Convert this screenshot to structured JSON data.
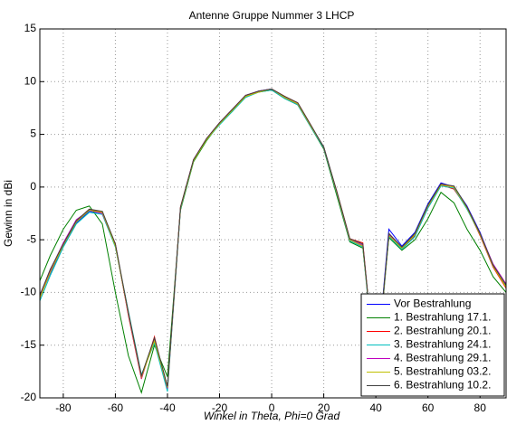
{
  "chart_data": {
    "type": "line",
    "title": "Antenne  Gruppe Nummer 3 LHCP",
    "x_label": "Winkel in Theta, Phi=0 Grad",
    "y_label": "Gewinn in dBi",
    "x": [
      -90,
      -85,
      -80,
      -75,
      -70,
      -65,
      -60,
      -55,
      -50,
      -45,
      -40,
      -35,
      -30,
      -25,
      -20,
      -15,
      -10,
      -5,
      0,
      5,
      10,
      15,
      20,
      25,
      30,
      35,
      40,
      45,
      50,
      55,
      60,
      65,
      70,
      75,
      80,
      85,
      90
    ],
    "xlim": [
      -89,
      90
    ],
    "ylim": [
      -20,
      15
    ],
    "xticks": [
      -80,
      -60,
      -40,
      -20,
      0,
      20,
      40,
      60,
      80
    ],
    "yticks": [
      -20,
      -15,
      -10,
      -5,
      0,
      5,
      10,
      15
    ],
    "grid": true,
    "legend": "lower right",
    "series": [
      {
        "name": "Vor Bestrahlung",
        "color": "#0000ff",
        "values": [
          -11,
          -8.2,
          -5.6,
          -3.4,
          -2.3,
          -2.5,
          -5.6,
          -12,
          -18,
          -14.5,
          -19,
          -2,
          2.5,
          4.5,
          6,
          7.3,
          8.6,
          9.1,
          9.3,
          8.5,
          7.9,
          5.8,
          3.8,
          -0.5,
          -5,
          -5.6,
          -18,
          -4,
          -5.6,
          -4.3,
          -1.6,
          0.4,
          0,
          -1.8,
          -4.3,
          -7.4,
          -9.3
        ]
      },
      {
        "name": "1. Bestrahlung 17.1.",
        "color": "#008000",
        "values": [
          -9.5,
          -6.5,
          -4,
          -2.2,
          -1.8,
          -3.5,
          -10,
          -16,
          -19.5,
          -15,
          -18,
          -2.2,
          2.4,
          4.4,
          6,
          7.2,
          8.6,
          9,
          9.2,
          8.4,
          7.8,
          5.7,
          3.6,
          -0.8,
          -5.2,
          -5.8,
          -17.5,
          -4.8,
          -6,
          -5,
          -3,
          -0.5,
          -1.5,
          -4,
          -6,
          -8.5,
          -10
        ]
      },
      {
        "name": "2. Bestrahlung 20.1.",
        "color": "#ff0000",
        "values": [
          -11.2,
          -8,
          -5.4,
          -3.2,
          -2.1,
          -2.4,
          -5.4,
          -12.2,
          -18.2,
          -14.2,
          -19.2,
          -1.9,
          2.6,
          4.6,
          6.1,
          7.4,
          8.7,
          9,
          9.3,
          8.6,
          8,
          5.9,
          3.7,
          -0.4,
          -4.9,
          -5.3,
          -18.2,
          -4.6,
          -5.8,
          -4.6,
          -1.9,
          0.2,
          -0.2,
          -2,
          -4.6,
          -7.6,
          -9.6
        ]
      },
      {
        "name": "3. Bestrahlung 24.1.",
        "color": "#00bfbf",
        "values": [
          -11.4,
          -8.4,
          -5.7,
          -3.5,
          -2.4,
          -2.6,
          -5.7,
          -11.8,
          -17.8,
          -14.8,
          -19.4,
          -2.1,
          2.5,
          4.5,
          5.9,
          7.2,
          8.5,
          9,
          9.2,
          8.4,
          7.8,
          5.7,
          3.7,
          -0.6,
          -5.1,
          -5.7,
          -18.4,
          -4.7,
          -5.9,
          -4.7,
          -2,
          0.1,
          -0.1,
          -2.1,
          -4.5,
          -7.5,
          -9.4
        ]
      },
      {
        "name": "4. Bestrahlung 29.1.",
        "color": "#bf00bf",
        "values": [
          -10.8,
          -7.9,
          -5.3,
          -3.1,
          -2.2,
          -2.5,
          -5.5,
          -12.1,
          -18.1,
          -14.4,
          -19.1,
          -2,
          2.6,
          4.6,
          6.1,
          7.4,
          8.7,
          9.1,
          9.3,
          8.5,
          7.9,
          5.8,
          3.8,
          -0.5,
          -5,
          -5.5,
          -18.1,
          -4.5,
          -5.7,
          -4.5,
          -1.8,
          0.3,
          0,
          -1.9,
          -4.4,
          -7.3,
          -9.2
        ]
      },
      {
        "name": "5. Bestrahlung 03.2.",
        "color": "#bfbf00",
        "values": [
          -11.1,
          -8.1,
          -5.5,
          -3.3,
          -2.2,
          -2.4,
          -5.6,
          -12,
          -18,
          -14.6,
          -19,
          -2,
          2.5,
          4.5,
          6,
          7.3,
          8.6,
          9,
          9.3,
          8.5,
          7.9,
          5.8,
          3.8,
          -0.5,
          -5,
          -5.6,
          -18,
          -4.6,
          -5.8,
          -4.5,
          -1.8,
          0.2,
          0,
          -2,
          -4.5,
          -7.5,
          -9.5
        ]
      },
      {
        "name": "6. Bestrahlung 10.2.",
        "color": "#404040",
        "values": [
          -10.9,
          -7.8,
          -5.4,
          -3.2,
          -2.1,
          -2.3,
          -5.4,
          -11.9,
          -17.9,
          -14.3,
          -18.9,
          -1.9,
          2.6,
          4.6,
          6.1,
          7.4,
          8.7,
          9.1,
          9.3,
          8.6,
          8,
          5.9,
          3.8,
          -0.4,
          -4.9,
          -5.4,
          -17.9,
          -4.4,
          -5.7,
          -4.4,
          -1.7,
          0.3,
          0.1,
          -1.9,
          -4.4,
          -7.4,
          -9.3
        ]
      }
    ]
  }
}
